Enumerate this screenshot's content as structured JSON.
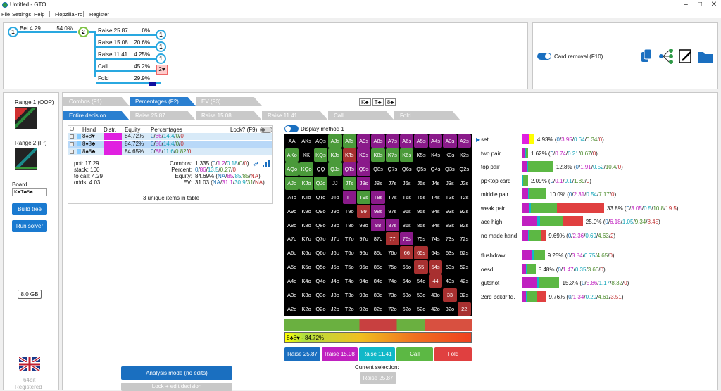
{
  "window": {
    "title": "Untitled - GTO"
  },
  "menu": [
    "File",
    "Settings",
    "Help",
    "FlopzillaPro",
    "Register"
  ],
  "tree": {
    "root": "1",
    "bet_label": "Bet 4.29",
    "bet_pct": "54.0%",
    "mid": "2",
    "actions": [
      {
        "label": "Raise 25.87",
        "pct": "0%",
        "end": "1"
      },
      {
        "label": "Raise 15.08",
        "pct": "20.6%",
        "end": "1"
      },
      {
        "label": "Raise 11.41",
        "pct": "4.25%",
        "end": "1"
      },
      {
        "label": "Call",
        "pct": "45.2%",
        "end": "2♥"
      },
      {
        "label": "Fold",
        "pct": "29.9%",
        "end": ""
      }
    ]
  },
  "card_removal": "Card removal (F10)",
  "left": {
    "range1": "Range 1 (OOP)",
    "range2": "Range 2 (IP)",
    "board_label": "Board",
    "board_value": "K♣T♣8♣",
    "build": "Build tree",
    "run": "Run solver",
    "mem": "8.0 GB",
    "bits": "64bit",
    "registered": "Registered"
  },
  "tabs": [
    "Combos (F1)",
    "Percentages (F2)",
    "EV (F3)"
  ],
  "board_cards": [
    "K♣",
    "T♣",
    "8♣"
  ],
  "subtabs": [
    "Entire decision",
    "Raise 25.87",
    "Raise 15.08",
    "Raise 11.41",
    "Call",
    "Fold"
  ],
  "table": {
    "headers": [
      "Hand",
      "Distr.",
      "Equity",
      "Percentages"
    ],
    "lock": "Lock? (F9)",
    "rows": [
      {
        "hand": "8♠8♥",
        "equity": "84.72%",
        "p": [
          "0",
          "86",
          "14.4",
          "0",
          "0"
        ]
      },
      {
        "hand": "8♦8♣",
        "equity": "84.72%",
        "p": [
          "0",
          "86",
          "14.4",
          "0",
          "0"
        ]
      },
      {
        "hand": "8♠8♣",
        "equity": "84.65%",
        "p": [
          "0",
          "88",
          "11.6",
          "0.82",
          "0"
        ]
      }
    ]
  },
  "stats": {
    "pot": "pot: 17.29",
    "stack": "stack: 100",
    "tocall": "to call: 4.29",
    "odds": "odds: 4.03",
    "combos_l": "Combos:",
    "combos_v": [
      "1.335 (",
      "0",
      "/",
      "1.2",
      "/",
      "0.18",
      "/",
      "0",
      "/",
      "0",
      ")"
    ],
    "percent_l": "Percent:",
    "percent_v": [
      "0",
      "/",
      "86",
      "/",
      "13.5",
      "/",
      "0.27",
      "/",
      "0"
    ],
    "equity_l": "Equity:",
    "equity_v": [
      "84.69% (",
      "NA",
      "/",
      "85",
      "/",
      "85",
      "/",
      "85",
      "/",
      "NA",
      ")"
    ],
    "ev_l": "EV:",
    "ev_v": [
      "31.03 (",
      "NA",
      "/",
      "31.1",
      "/",
      "30.9",
      "/",
      "31",
      "/",
      "NA",
      ")"
    ],
    "unique": "3 unique items in table"
  },
  "display_method": "Display method 1",
  "grid": [
    [
      "AA",
      "AKs",
      "AQs",
      "AJs",
      "ATs",
      "A9s",
      "A8s",
      "A7s",
      "A6s",
      "A5s",
      "A4s",
      "A3s",
      "A2s"
    ],
    [
      "AKo",
      "KK",
      "KQs",
      "KJs",
      "KTs",
      "K9s",
      "K8s",
      "K7s",
      "K6s",
      "K5s",
      "K4s",
      "K3s",
      "K2s"
    ],
    [
      "AQo",
      "KQo",
      "QQ",
      "QJs",
      "QTs",
      "Q9s",
      "Q8s",
      "Q7s",
      "Q6s",
      "Q5s",
      "Q4s",
      "Q3s",
      "Q2s"
    ],
    [
      "AJo",
      "KJo",
      "QJo",
      "JJ",
      "JTs",
      "J9s",
      "J8s",
      "J7s",
      "J6s",
      "J5s",
      "J4s",
      "J3s",
      "J2s"
    ],
    [
      "ATo",
      "KTo",
      "QTo",
      "JTo",
      "TT",
      "T9s",
      "T8s",
      "T7s",
      "T6s",
      "T5s",
      "T4s",
      "T3s",
      "T2s"
    ],
    [
      "A9o",
      "K9o",
      "Q9o",
      "J9o",
      "T9o",
      "99",
      "98s",
      "97s",
      "96s",
      "95s",
      "94s",
      "93s",
      "92s"
    ],
    [
      "A8o",
      "K8o",
      "Q8o",
      "J8o",
      "T8o",
      "98o",
      "88",
      "87s",
      "86s",
      "85s",
      "84s",
      "83s",
      "82s"
    ],
    [
      "A7o",
      "K7o",
      "Q7o",
      "J7o",
      "T7o",
      "97o",
      "87o",
      "77",
      "76s",
      "75s",
      "74s",
      "73s",
      "72s"
    ],
    [
      "A6o",
      "K6o",
      "Q6o",
      "J6o",
      "T6o",
      "96o",
      "86o",
      "76o",
      "66",
      "65s",
      "64s",
      "63s",
      "62s"
    ],
    [
      "A5o",
      "K5o",
      "Q5o",
      "J5o",
      "T5o",
      "95o",
      "85o",
      "75o",
      "65o",
      "55",
      "54s",
      "53s",
      "52s"
    ],
    [
      "A4o",
      "K4o",
      "Q4o",
      "J4o",
      "T4o",
      "94o",
      "84o",
      "74o",
      "64o",
      "54o",
      "44",
      "43s",
      "42s"
    ],
    [
      "A3o",
      "K3o",
      "Q3o",
      "J3o",
      "T3o",
      "93o",
      "83o",
      "73o",
      "63o",
      "53o",
      "43o",
      "33",
      "32s"
    ],
    [
      "A2o",
      "K2o",
      "Q2o",
      "J2o",
      "T2o",
      "92o",
      "82o",
      "72o",
      "62o",
      "52o",
      "42o",
      "32o",
      "22"
    ]
  ],
  "grid_colors": {
    "purple": [
      "A9s",
      "A8s",
      "A7s",
      "A6s",
      "A5s",
      "A4s",
      "A3s",
      "A2s",
      "K9s",
      "QTs",
      "Q9s",
      "J9s",
      "TT",
      "T8s",
      "98s",
      "88",
      "87s",
      "76s"
    ],
    "green": [
      "AJs",
      "ATs",
      "AKo",
      "KQs",
      "KJs",
      "K8s",
      "K7s",
      "K6s",
      "AQo",
      "KQo",
      "QJs",
      "AJo",
      "KJo",
      "QJo",
      "JTs",
      "T9s"
    ],
    "red": [
      "KTs",
      "99",
      "77",
      "66",
      "65s",
      "55",
      "54s",
      "44",
      "33",
      "22"
    ]
  },
  "selected_hand": "8♣8♥ - 84.72%",
  "action_buttons": [
    "Raise 25.87",
    "Raise 15.08",
    "Raise 11.41",
    "Call",
    "Fold"
  ],
  "current_selection": "Current selection:",
  "current_value": "Raise 25.87",
  "analysis": "Analysis mode (no edits)",
  "lock_edit": "Lock + edit decision",
  "categories": [
    {
      "name": "set",
      "total": "4.93%",
      "v": [
        "0",
        "3.95",
        "0.64",
        "0.34",
        "0"
      ]
    },
    {
      "name": "two pair",
      "total": "1.62%",
      "v": [
        "0",
        "0.74",
        "0.21",
        "0.67",
        "0"
      ]
    },
    {
      "name": "top pair",
      "total": "12.8%",
      "v": [
        "0",
        "1.91",
        "0.52",
        "10.4",
        "0"
      ]
    },
    {
      "name": "pp<top card",
      "total": "2.09%",
      "v": [
        "0",
        "0.1",
        "0.1",
        "1.89",
        "0"
      ]
    },
    {
      "name": "middle pair",
      "total": "10.0%",
      "v": [
        "0",
        "2.31",
        "0.54",
        "7.17",
        "0"
      ]
    },
    {
      "name": "weak pair",
      "total": "33.8%",
      "v": [
        "0",
        "3.05",
        "0.5",
        "10.8",
        "19.5"
      ]
    },
    {
      "name": "ace high",
      "total": "25.0%",
      "v": [
        "0",
        "6.18",
        "1.05",
        "9.34",
        "8.45"
      ]
    },
    {
      "name": "no made hand",
      "total": "9.69%",
      "v": [
        "0",
        "2.36",
        "0.69",
        "4.63",
        "2"
      ]
    },
    {
      "name": "flushdraw",
      "total": "9.25%",
      "v": [
        "0",
        "3.84",
        "0.75",
        "4.65",
        "0"
      ]
    },
    {
      "name": "oesd",
      "total": "5.48%",
      "v": [
        "0",
        "1.47",
        "0.35",
        "3.66",
        "0"
      ]
    },
    {
      "name": "gutshot",
      "total": "15.3%",
      "v": [
        "0",
        "5.86",
        "1.17",
        "8.32",
        "0"
      ]
    },
    {
      "name": "2crd bckdr fd.",
      "total": "9.76%",
      "v": [
        "0",
        "1.34",
        "0.29",
        "4.61",
        "3.51"
      ]
    }
  ],
  "colors": {
    "raise25": "#1a6fc0",
    "raise15": "#c020c0",
    "raise11": "#11b8c8",
    "call": "#5cb844",
    "fold": "#e04040",
    "accent": "#29a8e0"
  }
}
